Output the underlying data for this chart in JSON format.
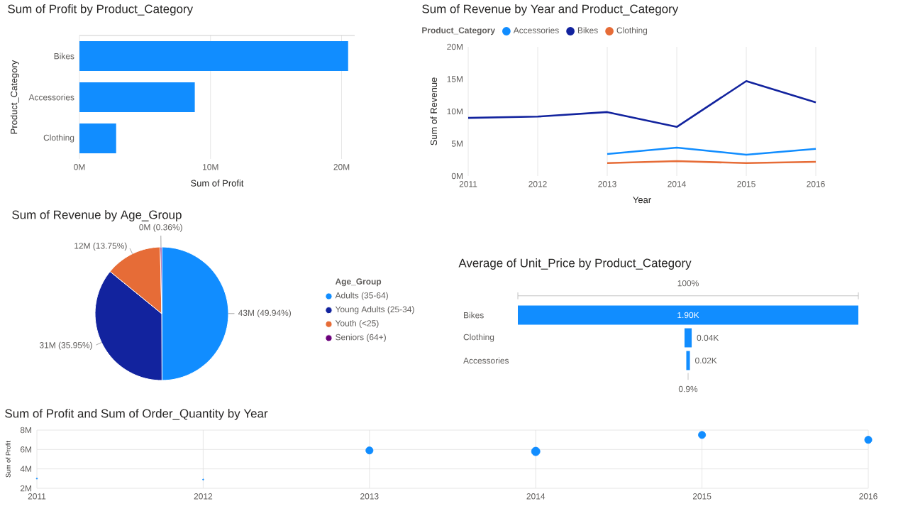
{
  "chart_data": [
    {
      "type": "bar",
      "orientation": "horizontal",
      "title": "Sum of Profit by Product_Category",
      "xlabel": "Sum of Profit",
      "ylabel": "Product_Category",
      "categories": [
        "Bikes",
        "Accessories",
        "Clothing"
      ],
      "values": [
        20.5,
        8.8,
        2.8
      ],
      "color": "#118dff",
      "xlim": [
        0,
        21
      ],
      "xticks": [
        {
          "value": 0,
          "label": "0M"
        },
        {
          "value": 10,
          "label": "10M"
        },
        {
          "value": 20,
          "label": "20M"
        }
      ],
      "grid": "x"
    },
    {
      "type": "line",
      "title": "Sum of Revenue by Year and Product_Category",
      "xlabel": "Year",
      "ylabel": "Sum of Revenue",
      "legend_title": "Product_Category",
      "legend": "top left",
      "grid": "x",
      "x": [
        2011,
        2012,
        2013,
        2014,
        2015,
        2016
      ],
      "xlim": [
        2011,
        2016
      ],
      "xticks": [
        2011,
        2012,
        2013,
        2014,
        2015,
        2016
      ],
      "ylim": [
        0,
        20
      ],
      "yticks": [
        {
          "value": 0,
          "label": "0M"
        },
        {
          "value": 5,
          "label": "5M"
        },
        {
          "value": 10,
          "label": "10M"
        },
        {
          "value": 15,
          "label": "15M"
        },
        {
          "value": 20,
          "label": "20M"
        }
      ],
      "series": [
        {
          "name": "Accessories",
          "color": "#118dff",
          "values": [
            null,
            null,
            3.4,
            4.4,
            3.3,
            4.2
          ]
        },
        {
          "name": "Bikes",
          "color": "#12239e",
          "values": [
            9.0,
            9.2,
            9.9,
            7.6,
            14.7,
            11.4
          ]
        },
        {
          "name": "Clothing",
          "color": "#e66c37",
          "values": [
            null,
            null,
            2.0,
            2.3,
            2.0,
            2.2
          ]
        }
      ]
    },
    {
      "type": "pie",
      "title": "Sum of Revenue by Age_Group",
      "legend_title": "Age_Group",
      "legend": "right",
      "categories": [
        "Adults (35-64)",
        "Young Adults (25-34)",
        "Youth (<25)",
        "Seniors (64+)"
      ],
      "values": [
        49.94,
        35.95,
        13.75,
        0.36
      ],
      "colors": [
        "#118dff",
        "#12239e",
        "#e66c37",
        "#6b007b"
      ],
      "value_labels": [
        "43M (49.94%)",
        "31M (35.95%)",
        "12M (13.75%)",
        "0M (0.36%)"
      ]
    },
    {
      "type": "other",
      "title": "Average of Unit_Price by Product_Category",
      "categories": [
        "Bikes",
        "Clothing",
        "Accessories"
      ],
      "values": [
        1.9,
        0.04,
        0.02
      ],
      "value_labels": [
        "1.90K",
        "0.04K",
        "0.02K"
      ],
      "color": "#118dff",
      "annotations": [
        "100%",
        "0.9%"
      ]
    },
    {
      "type": "bubble",
      "title": "Sum of Profit and Sum of Order_Quantity by Year",
      "ylabel": "Sum of Profit",
      "color": "#118dff",
      "grid": true,
      "x": [
        2011,
        2012,
        2013,
        2014,
        2015,
        2016
      ],
      "values": [
        3.0,
        2.9,
        5.9,
        5.8,
        7.5,
        7.0
      ],
      "sizes": [
        0.02,
        0.02,
        0.73,
        1,
        0.73,
        0.73
      ],
      "xlim": [
        2011,
        2016
      ],
      "xticks": [
        2011,
        2012,
        2013,
        2014,
        2015,
        2016
      ],
      "ylim": [
        2,
        8
      ],
      "yticks": [
        {
          "value": 2,
          "label": "2M"
        },
        {
          "value": 4,
          "label": "4M"
        },
        {
          "value": 6,
          "label": "6M"
        },
        {
          "value": 8,
          "label": "8M"
        }
      ]
    }
  ]
}
